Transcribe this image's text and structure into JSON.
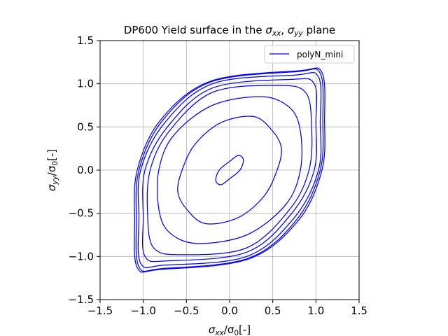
{
  "chart_data": {
    "type": "line",
    "title": "DP600 Yield surface in the σxx, σyy plane",
    "title_parts": {
      "prefix": "DP600 Yield surface in the ",
      "sym1": "σ",
      "sub1": "xx",
      "sep": ", ",
      "sym2": "σ",
      "sub2": "yy",
      "suffix": " plane"
    },
    "xlabel": "σxx/σ0[-]",
    "xlabel_parts": {
      "sym": "σ",
      "sub": "xx",
      "mid": "/σ",
      "sub2": "0",
      "suffix": "[-]"
    },
    "ylabel": "σyy/σ0[-]",
    "ylabel_parts": {
      "sym": "σ",
      "sub": "yy",
      "mid": "/σ",
      "sub2": "0",
      "suffix": "[-]"
    },
    "xlim": [
      -1.5,
      1.5
    ],
    "ylim": [
      -1.5,
      1.5
    ],
    "xticks": [
      -1.5,
      -1.0,
      -0.5,
      0.0,
      0.5,
      1.0,
      1.5
    ],
    "yticks": [
      -1.5,
      -1.0,
      -0.5,
      0.0,
      0.5,
      1.0,
      1.5
    ],
    "xtick_labels": [
      "−1.5",
      "−1.0",
      "−0.5",
      "0.0",
      "0.5",
      "1.0",
      "1.5"
    ],
    "ytick_labels": [
      "−1.5",
      "−1.0",
      "−0.5",
      "0.0",
      "0.5",
      "1.0",
      "1.5"
    ],
    "grid": true,
    "legend_position": "top-right",
    "color": "#0000ff",
    "series": [
      {
        "name": "polyN_mini",
        "contours": [
          [
            [
              0.1,
              0.17
            ],
            [
              0.16,
              0.12
            ],
            [
              0.12,
              0.0
            ],
            [
              0.0,
              -0.1
            ],
            [
              -0.1,
              -0.17
            ],
            [
              -0.16,
              -0.12
            ],
            [
              -0.12,
              0.0
            ],
            [
              0.0,
              0.1
            ]
          ],
          [
            [
              0.28,
              0.62
            ],
            [
              0.5,
              0.45
            ],
            [
              0.6,
              0.25
            ],
            [
              0.55,
              0.0
            ],
            [
              0.4,
              -0.3
            ],
            [
              0.1,
              -0.55
            ],
            [
              -0.28,
              -0.62
            ],
            [
              -0.5,
              -0.45
            ],
            [
              -0.6,
              -0.25
            ],
            [
              -0.55,
              0.0
            ],
            [
              -0.4,
              0.3
            ],
            [
              -0.1,
              0.55
            ]
          ],
          [
            [
              0.38,
              0.85
            ],
            [
              0.7,
              0.72
            ],
            [
              0.82,
              0.45
            ],
            [
              0.82,
              0.0
            ],
            [
              0.65,
              -0.4
            ],
            [
              0.2,
              -0.75
            ],
            [
              -0.38,
              -0.85
            ],
            [
              -0.7,
              -0.72
            ],
            [
              -0.82,
              -0.45
            ],
            [
              -0.82,
              0.0
            ],
            [
              -0.65,
              0.4
            ],
            [
              -0.2,
              0.75
            ]
          ],
          [
            [
              0.55,
              0.98
            ],
            [
              0.88,
              0.9
            ],
            [
              0.95,
              0.5
            ],
            [
              0.92,
              0.0
            ],
            [
              0.7,
              -0.45
            ],
            [
              0.2,
              -0.9
            ],
            [
              -0.55,
              -0.98
            ],
            [
              -0.88,
              -0.9
            ],
            [
              -0.95,
              -0.5
            ],
            [
              -0.92,
              0.0
            ],
            [
              -0.7,
              0.45
            ],
            [
              -0.2,
              0.9
            ]
          ],
          [
            [
              0.7,
              1.05
            ],
            [
              0.98,
              1.0
            ],
            [
              1.0,
              0.55
            ],
            [
              0.98,
              0.0
            ],
            [
              0.72,
              -0.5
            ],
            [
              0.2,
              -0.95
            ],
            [
              -0.7,
              -1.05
            ],
            [
              -0.98,
              -1.0
            ],
            [
              -1.0,
              -0.55
            ],
            [
              -0.98,
              0.0
            ],
            [
              -0.72,
              0.5
            ],
            [
              -0.2,
              0.95
            ]
          ],
          [
            [
              0.75,
              1.1
            ],
            [
              1.03,
              1.08
            ],
            [
              1.05,
              0.55
            ],
            [
              1.03,
              0.0
            ],
            [
              0.75,
              -0.55
            ],
            [
              0.2,
              -1.0
            ],
            [
              -0.75,
              -1.1
            ],
            [
              -1.03,
              -1.08
            ],
            [
              -1.05,
              -0.55
            ],
            [
              -1.03,
              0.0
            ],
            [
              -0.75,
              0.55
            ],
            [
              -0.2,
              1.0
            ]
          ],
          [
            [
              0.78,
              1.14
            ],
            [
              1.05,
              1.12
            ],
            [
              1.08,
              0.57
            ],
            [
              1.05,
              0.0
            ],
            [
              0.78,
              -0.57
            ],
            [
              0.22,
              -1.02
            ],
            [
              -0.78,
              -1.14
            ],
            [
              -1.05,
              -1.12
            ],
            [
              -1.08,
              -0.57
            ],
            [
              -1.05,
              0.0
            ],
            [
              -0.78,
              0.57
            ],
            [
              -0.22,
              1.02
            ]
          ],
          [
            [
              0.8,
              1.15
            ],
            [
              1.07,
              1.13
            ],
            [
              1.1,
              0.58
            ],
            [
              1.07,
              0.0
            ],
            [
              0.8,
              -0.58
            ],
            [
              0.22,
              -1.03
            ],
            [
              -0.8,
              -1.15
            ],
            [
              -1.07,
              -1.13
            ],
            [
              -1.1,
              -0.58
            ],
            [
              -1.07,
              0.0
            ],
            [
              -0.8,
              0.58
            ],
            [
              -0.22,
              1.03
            ]
          ]
        ]
      }
    ]
  }
}
